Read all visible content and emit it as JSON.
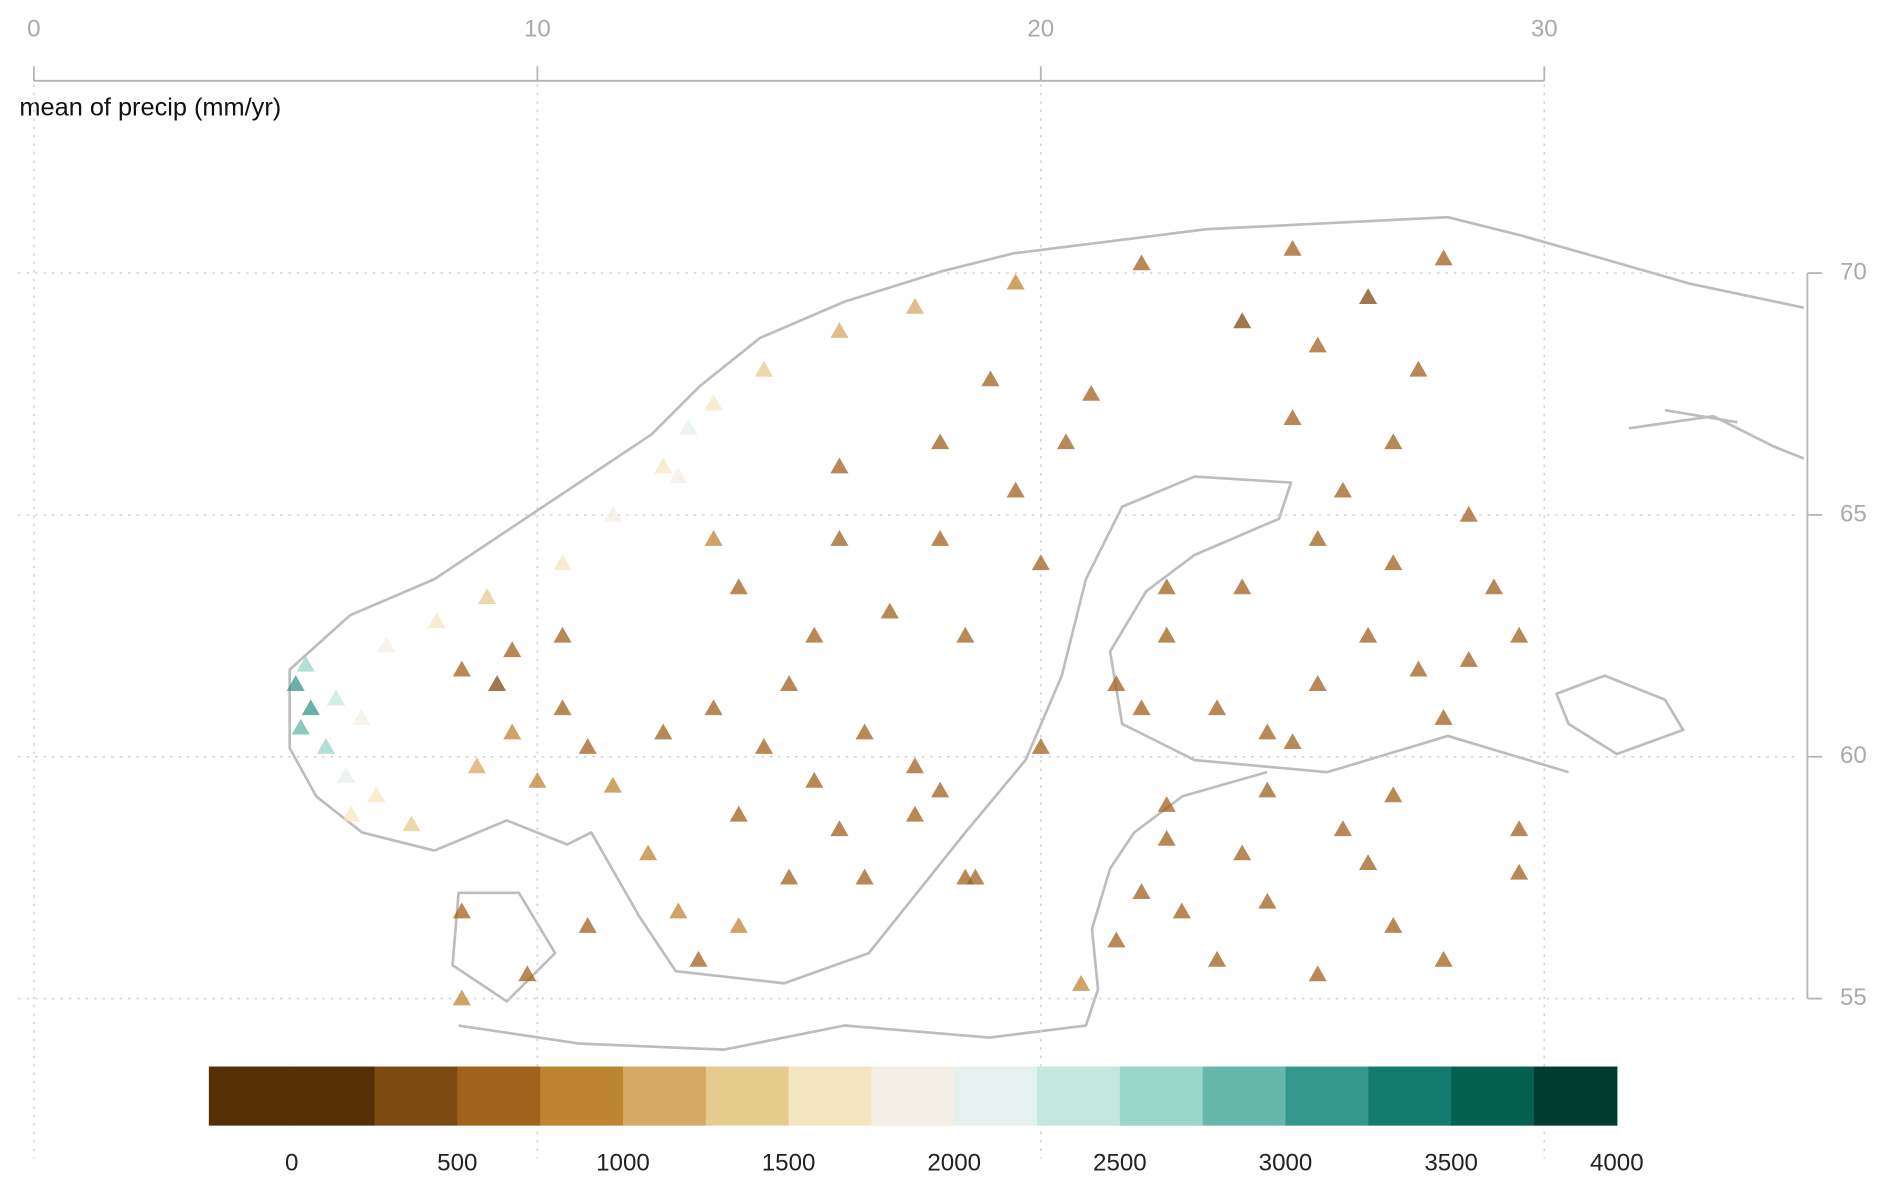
{
  "chart_data": {
    "type": "scatter",
    "title": "mean of precip (mm/yr)",
    "marker": "triangle",
    "opacity": 0.75,
    "xlim": [
      0,
      35
    ],
    "ylim": [
      51.7,
      73.9
    ],
    "xticks": [
      0,
      10,
      20,
      30
    ],
    "yticks": [
      55,
      60,
      65,
      70
    ],
    "grid": true,
    "x": [
      5.2,
      5.5,
      5.3,
      5.8,
      5.4,
      6.0,
      6.5,
      6.2,
      6.8,
      7.5,
      6.3,
      7.0,
      8.0,
      9.0,
      10.5,
      11.5,
      12.5,
      13.5,
      14.5,
      16.0,
      17.5,
      19.5,
      22.0,
      25.0,
      28.0,
      13.0,
      12.8,
      8.5,
      9.2,
      10.5,
      11.0,
      9.5,
      10.0,
      8.8,
      11.5,
      10.5,
      9.5,
      12.5,
      13.5,
      14.5,
      15.5,
      16.5,
      17.5,
      18.0,
      16.0,
      15.0,
      14.0,
      13.2,
      12.8,
      12.2,
      14.0,
      16.5,
      18.5,
      15.5,
      17.0,
      14.0,
      16.0,
      18.0,
      19.5,
      20.5,
      18.0,
      21.0,
      19.0,
      16.0,
      13.5,
      15.0,
      18.5,
      20.0,
      17.5,
      21.5,
      22.5,
      23.5,
      24.5,
      25.5,
      26.5,
      27.5,
      28.5,
      29.5,
      29.0,
      27.0,
      25.5,
      24.0,
      22.5,
      26.0,
      28.5,
      27.0,
      25.0,
      27.5,
      25.5,
      24.0,
      26.5,
      22.0,
      25.0,
      28.0,
      22.5,
      24.5,
      26.0,
      27.0,
      22.5,
      24.0,
      26.5,
      22.0,
      24.5,
      27.0,
      21.5,
      23.5,
      25.5,
      28.0,
      29.5,
      29.5,
      20.8,
      22.8,
      8.5,
      9.8,
      11.0,
      8.5,
      20.0,
      18.7
    ],
    "y": [
      61.5,
      61.0,
      60.6,
      60.2,
      61.9,
      61.2,
      60.8,
      59.6,
      59.2,
      58.6,
      58.8,
      62.3,
      62.8,
      63.3,
      64.0,
      65.0,
      66.0,
      67.3,
      68.0,
      68.8,
      69.3,
      69.8,
      70.2,
      70.5,
      70.3,
      66.8,
      65.8,
      61.8,
      61.5,
      61.0,
      60.2,
      60.5,
      59.5,
      59.8,
      59.4,
      62.5,
      62.2,
      60.5,
      61.0,
      60.2,
      59.5,
      60.5,
      59.8,
      59.3,
      58.5,
      57.5,
      56.5,
      55.8,
      56.8,
      58.0,
      58.8,
      57.5,
      57.5,
      62.5,
      63.0,
      63.5,
      64.5,
      64.5,
      65.5,
      66.5,
      66.5,
      67.5,
      67.8,
      66.0,
      64.5,
      61.5,
      62.5,
      64.0,
      58.8,
      61.5,
      62.5,
      61.0,
      60.5,
      61.5,
      62.5,
      61.8,
      62.0,
      62.5,
      63.5,
      64.0,
      64.5,
      63.5,
      63.5,
      65.5,
      65.0,
      66.5,
      67.0,
      68.0,
      68.5,
      69.0,
      69.5,
      61.0,
      60.3,
      60.8,
      59.0,
      59.3,
      58.5,
      59.2,
      58.3,
      58.0,
      57.8,
      57.2,
      57.0,
      56.5,
      56.2,
      55.8,
      55.5,
      55.8,
      58.5,
      57.6,
      55.3,
      56.8,
      56.8,
      55.5,
      56.5,
      55.0,
      60.2,
      57.5
    ],
    "values": [
      3200,
      3000,
      2800,
      2600,
      2500,
      2300,
      1800,
      2100,
      1700,
      1400,
      1500,
      1900,
      1600,
      1400,
      1700,
      1900,
      1700,
      1500,
      1300,
      1200,
      1000,
      900,
      700,
      600,
      500,
      2200,
      1900,
      500,
      450,
      600,
      700,
      800,
      900,
      1100,
      750,
      550,
      700,
      700,
      650,
      600,
      650,
      600,
      550,
      550,
      600,
      700,
      800,
      700,
      900,
      850,
      650,
      600,
      550,
      650,
      650,
      700,
      600,
      600,
      550,
      550,
      600,
      500,
      550,
      650,
      750,
      650,
      600,
      550,
      550,
      600,
      600,
      650,
      650,
      650,
      650,
      650,
      650,
      600,
      600,
      600,
      550,
      550,
      550,
      600,
      600,
      550,
      550,
      500,
      500,
      450,
      450,
      650,
      650,
      650,
      600,
      650,
      650,
      650,
      700,
      650,
      650,
      700,
      650,
      650,
      700,
      650,
      650,
      650,
      650,
      650,
      750,
      650,
      700,
      700,
      600,
      800,
      550,
      550
    ],
    "colorbar": {
      "lim": [
        -250,
        4000
      ],
      "colors": [
        "#553006",
        "#553006",
        "#7d4a12",
        "#a0621d",
        "#bd8431",
        "#d4aa62",
        "#e6cb8f",
        "#f5e6c2",
        "#f4efe6",
        "#e6f0ee",
        "#c2e8e0",
        "#98d6ca",
        "#66b8ab",
        "#35968b",
        "#137a6d",
        "#04604f",
        "#003c30"
      ],
      "ticks": [
        0,
        500,
        1000,
        1500,
        2000,
        2500,
        3000,
        3500,
        4000
      ]
    }
  }
}
